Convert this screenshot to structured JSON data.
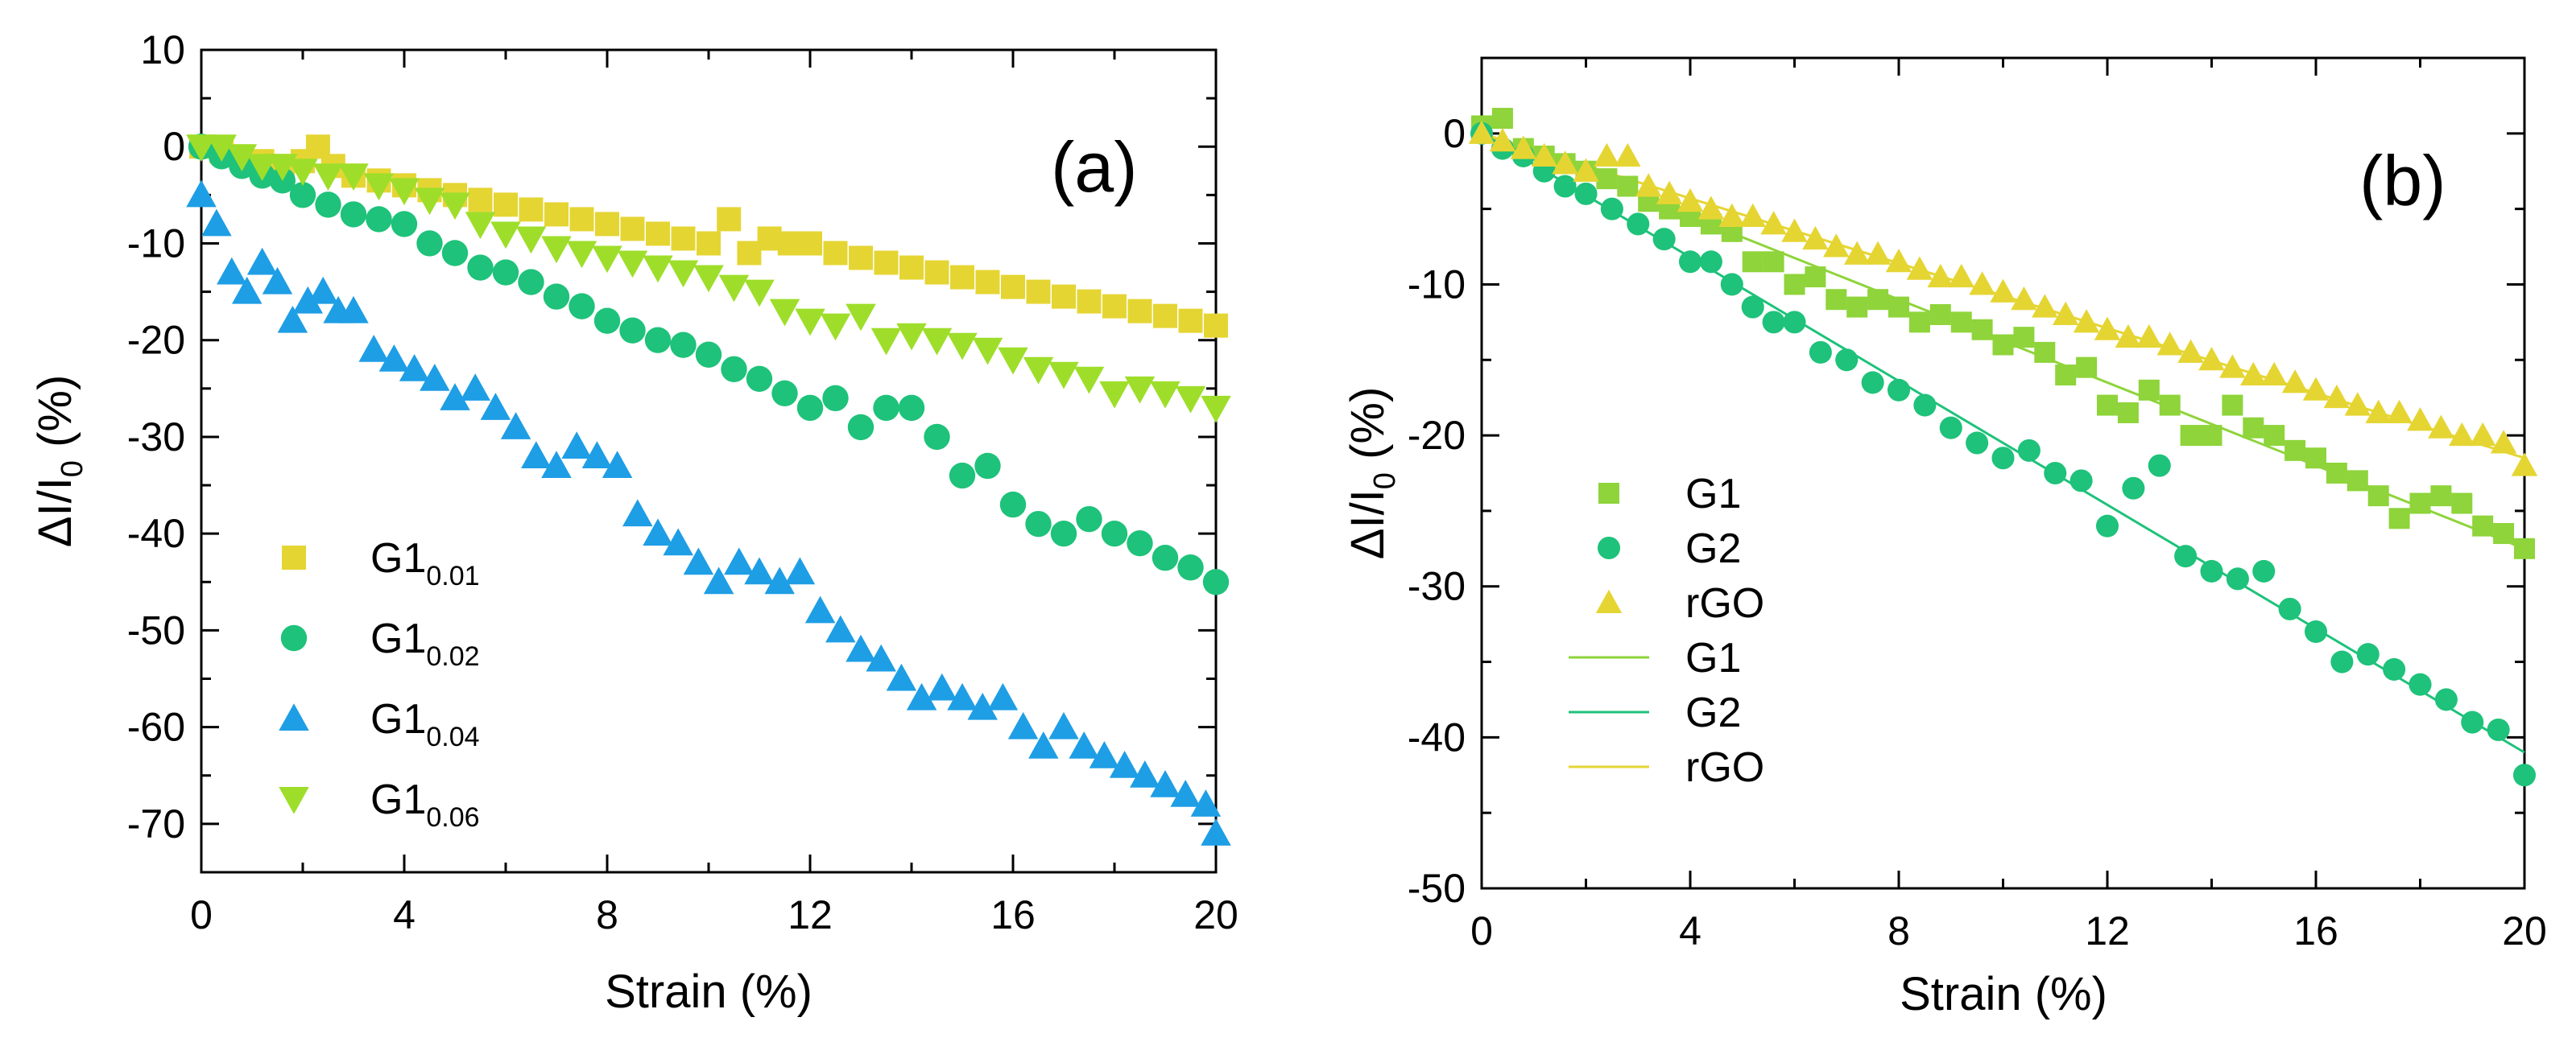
{
  "figure": {
    "panel_count": 2
  },
  "chart_data": [
    {
      "type": "scatter",
      "panel_label": "(a)",
      "xlabel": "Strain (%)",
      "ylabel": {
        "main": "ΔI/I",
        "sub": "0",
        "unit": " (%)"
      },
      "xlim": [
        0,
        20
      ],
      "ylim": [
        -75,
        10
      ],
      "xticks": [
        0,
        4,
        8,
        12,
        16,
        20
      ],
      "yticks": [
        10,
        0,
        -10,
        -20,
        -30,
        -40,
        -50,
        -60,
        -70
      ],
      "legend": {
        "position": "lower-left"
      },
      "series": [
        {
          "name": "G1",
          "subscript": "0.01",
          "marker": "square",
          "color": "#e5d533",
          "x": [
            0,
            0.4,
            0.8,
            1.2,
            1.6,
            2.0,
            2.3,
            2.6,
            3.0,
            3.5,
            4.0,
            4.5,
            5.0,
            5.5,
            6.0,
            6.5,
            7.0,
            7.5,
            8.0,
            8.5,
            9.0,
            9.5,
            10.0,
            10.4,
            10.8,
            11.2,
            11.6,
            12.0,
            12.5,
            13.0,
            13.5,
            14.0,
            14.5,
            15.0,
            15.5,
            16.0,
            16.5,
            17.0,
            17.5,
            18.0,
            18.5,
            19.0,
            19.5,
            20.0
          ],
          "y": [
            0,
            -0.5,
            -1,
            -1.5,
            -2,
            -1.5,
            0,
            -2,
            -3,
            -3.5,
            -4,
            -4.5,
            -5,
            -5.5,
            -6,
            -6.5,
            -7,
            -7.5,
            -8,
            -8.5,
            -9,
            -9.5,
            -10,
            -7.5,
            -11,
            -9.5,
            -10,
            -10,
            -11,
            -11.5,
            -12,
            -12.5,
            -13,
            -13.5,
            -14,
            -14.5,
            -15,
            -15.5,
            -16,
            -16.5,
            -17,
            -17.5,
            -18,
            -18.5
          ]
        },
        {
          "name": "G1",
          "subscript": "0.02",
          "marker": "circle",
          "color": "#1ec27a",
          "x": [
            0,
            0.4,
            0.8,
            1.2,
            1.6,
            2.0,
            2.5,
            3.0,
            3.5,
            4.0,
            4.5,
            5.0,
            5.5,
            6.0,
            6.5,
            7.0,
            7.5,
            8.0,
            8.5,
            9.0,
            9.5,
            10.0,
            10.5,
            11.0,
            11.5,
            12.0,
            12.5,
            13.0,
            13.5,
            14.0,
            14.5,
            15.0,
            15.5,
            16.0,
            16.5,
            17.0,
            17.5,
            18.0,
            18.5,
            19.0,
            19.5,
            20.0
          ],
          "y": [
            0,
            -1,
            -2,
            -3,
            -3.5,
            -5,
            -6,
            -7,
            -7.5,
            -8,
            -10,
            -11,
            -12.5,
            -13,
            -14,
            -15.5,
            -16.5,
            -18,
            -19,
            -20,
            -20.5,
            -21.5,
            -23,
            -24,
            -25.5,
            -27,
            -26,
            -29,
            -27,
            -27,
            -30,
            -34,
            -33,
            -37,
            -39,
            -40,
            -38.5,
            -40,
            -41,
            -42.5,
            -43.5,
            -45
          ]
        },
        {
          "name": "G1",
          "subscript": "0.04",
          "marker": "triangle-up",
          "color": "#1e9ee5",
          "x": [
            0,
            0.3,
            0.6,
            0.9,
            1.2,
            1.5,
            1.8,
            2.1,
            2.4,
            2.7,
            3.0,
            3.4,
            3.8,
            4.2,
            4.6,
            5.0,
            5.4,
            5.8,
            6.2,
            6.6,
            7.0,
            7.4,
            7.8,
            8.2,
            8.6,
            9.0,
            9.4,
            9.8,
            10.2,
            10.6,
            11.0,
            11.4,
            11.8,
            12.2,
            12.6,
            13.0,
            13.4,
            13.8,
            14.2,
            14.6,
            15.0,
            15.4,
            15.8,
            16.2,
            16.6,
            17.0,
            17.4,
            17.8,
            18.2,
            18.6,
            19.0,
            19.4,
            19.8,
            20.0
          ],
          "y": [
            -5,
            -8,
            -13,
            -15,
            -12,
            -14,
            -18,
            -16,
            -15,
            -17,
            -17,
            -21,
            -22,
            -23,
            -24,
            -26,
            -25,
            -27,
            -29,
            -32,
            -33,
            -31,
            -32,
            -33,
            -38,
            -40,
            -41,
            -43,
            -45,
            -43,
            -44,
            -45,
            -44,
            -48,
            -50,
            -52,
            -53,
            -55,
            -57,
            -56,
            -57,
            -58,
            -57,
            -60,
            -62,
            -60,
            -62,
            -63,
            -64,
            -65,
            -66,
            -67,
            -68,
            -71
          ]
        },
        {
          "name": "G1",
          "subscript": "0.06",
          "marker": "triangle-down",
          "color": "#9ede2a",
          "x": [
            0,
            0.4,
            0.8,
            1.2,
            1.6,
            2.0,
            2.5,
            3.0,
            3.5,
            4.0,
            4.5,
            5.0,
            5.5,
            6.0,
            6.5,
            7.0,
            7.5,
            8.0,
            8.5,
            9.0,
            9.5,
            10.0,
            10.5,
            11.0,
            11.5,
            12.0,
            12.5,
            13.0,
            13.5,
            14.0,
            14.5,
            15.0,
            15.5,
            16.0,
            16.5,
            17.0,
            17.5,
            18.0,
            18.5,
            19.0,
            19.5,
            20.0
          ],
          "y": [
            0,
            0,
            -1,
            -2,
            -2,
            -2.5,
            -3,
            -3,
            -4,
            -4.5,
            -5.5,
            -6,
            -8,
            -9,
            -9.5,
            -10.5,
            -11,
            -11.5,
            -12,
            -12.5,
            -13,
            -13.5,
            -14.5,
            -15,
            -17,
            -18,
            -18.5,
            -17.5,
            -20,
            -19.5,
            -20,
            -20.5,
            -21,
            -22,
            -23,
            -23.5,
            -24,
            -25.5,
            -25,
            -25.5,
            -26,
            -27
          ]
        }
      ]
    },
    {
      "type": "scatter",
      "panel_label": "(b)",
      "xlabel": "Strain (%)",
      "ylabel": {
        "main": "ΔI/I",
        "sub": "0",
        "unit": " (%)"
      },
      "xlim": [
        0,
        20
      ],
      "ylim": [
        -50,
        5
      ],
      "xticks": [
        0,
        4,
        8,
        12,
        16,
        20
      ],
      "yticks": [
        0,
        -10,
        -20,
        -30,
        -40,
        -50
      ],
      "legend": {
        "position": "lower-left"
      },
      "series": [
        {
          "name": "G1",
          "marker": "square",
          "color": "#8ed43a",
          "x": [
            0,
            0.4,
            0.8,
            1.2,
            1.6,
            2.0,
            2.4,
            2.8,
            3.2,
            3.6,
            4.0,
            4.4,
            4.8,
            5.2,
            5.6,
            6.0,
            6.4,
            6.8,
            7.2,
            7.6,
            8.0,
            8.4,
            8.8,
            9.2,
            9.6,
            10.0,
            10.4,
            10.8,
            11.2,
            11.6,
            12.0,
            12.4,
            12.8,
            13.2,
            13.6,
            14.0,
            14.4,
            14.8,
            15.2,
            15.6,
            16.0,
            16.4,
            16.8,
            17.2,
            17.6,
            18.0,
            18.4,
            18.8,
            19.2,
            19.6,
            20.0
          ],
          "y": [
            0.5,
            1,
            -1,
            -1.5,
            -2,
            -2.5,
            -3,
            -3.5,
            -4.5,
            -5,
            -5.5,
            -6,
            -6.5,
            -8.5,
            -8.5,
            -10,
            -9.5,
            -11,
            -11.5,
            -11,
            -11.5,
            -12.5,
            -12,
            -12.5,
            -13,
            -14,
            -13.5,
            -14.5,
            -16,
            -15.5,
            -18,
            -18.5,
            -17,
            -18,
            -20,
            -20,
            -18,
            -19.5,
            -20,
            -21,
            -21.5,
            -22.5,
            -23,
            -24,
            -25.5,
            -24.5,
            -24,
            -24.5,
            -26,
            -26.5,
            -27.5
          ]
        },
        {
          "name": "G2",
          "marker": "circle",
          "color": "#1ec27a",
          "x": [
            0,
            0.4,
            0.8,
            1.2,
            1.6,
            2.0,
            2.5,
            3.0,
            3.5,
            4.0,
            4.4,
            4.8,
            5.2,
            5.6,
            6.0,
            6.5,
            7.0,
            7.5,
            8.0,
            8.5,
            9.0,
            9.5,
            10.0,
            10.5,
            11.0,
            11.5,
            12.0,
            12.5,
            13.0,
            13.5,
            14.0,
            14.5,
            15.0,
            15.5,
            16.0,
            16.5,
            17.0,
            17.5,
            18.0,
            18.5,
            19.0,
            19.5,
            20.0
          ],
          "y": [
            0,
            -1,
            -1.5,
            -2.5,
            -3.5,
            -4,
            -5,
            -6,
            -7,
            -8.5,
            -8.5,
            -10,
            -11.5,
            -12.5,
            -12.5,
            -14.5,
            -15,
            -16.5,
            -17,
            -18,
            -19.5,
            -20.5,
            -21.5,
            -21,
            -22.5,
            -23,
            -26,
            -23.5,
            -22,
            -28,
            -29,
            -29.5,
            -29,
            -31.5,
            -33,
            -35,
            -34.5,
            -35.5,
            -36.5,
            -37.5,
            -39,
            -39.5,
            -42.5
          ]
        },
        {
          "name": "rGO",
          "marker": "triangle-up",
          "color": "#e5d533",
          "x": [
            0,
            0.4,
            0.8,
            1.2,
            1.6,
            2.0,
            2.4,
            2.8,
            3.2,
            3.6,
            4.0,
            4.4,
            4.8,
            5.2,
            5.6,
            6.0,
            6.4,
            6.8,
            7.2,
            7.6,
            8.0,
            8.4,
            8.8,
            9.2,
            9.6,
            10.0,
            10.4,
            10.8,
            11.2,
            11.6,
            12.0,
            12.4,
            12.8,
            13.2,
            13.6,
            14.0,
            14.4,
            14.8,
            15.2,
            15.6,
            16.0,
            16.4,
            16.8,
            17.2,
            17.6,
            18.0,
            18.4,
            18.8,
            19.2,
            19.6,
            20.0
          ],
          "y": [
            0,
            -0.5,
            -1,
            -1.5,
            -2,
            -2.5,
            -1.5,
            -1.5,
            -3.5,
            -4,
            -4.5,
            -5,
            -5.5,
            -5.5,
            -6,
            -6.5,
            -7,
            -7.5,
            -8,
            -8,
            -8.5,
            -9,
            -9.5,
            -9.5,
            -10,
            -10.5,
            -11,
            -11.5,
            -12,
            -12.5,
            -13,
            -13.5,
            -13.5,
            -14,
            -14.5,
            -15,
            -15.5,
            -16,
            -16,
            -16.5,
            -17,
            -17.5,
            -18,
            -18.5,
            -18.5,
            -19,
            -19.5,
            -20,
            -20,
            -20.5,
            -22
          ]
        }
      ],
      "fit_lines": [
        {
          "name": "G1",
          "color": "#8ed43a",
          "x": [
            0,
            20
          ],
          "y": [
            0,
            -27.5
          ]
        },
        {
          "name": "G2",
          "color": "#1ec27a",
          "x": [
            0,
            20
          ],
          "y": [
            0,
            -41
          ]
        },
        {
          "name": "rGO",
          "color": "#e5d533",
          "x": [
            0,
            20
          ],
          "y": [
            0,
            -21.5
          ]
        }
      ]
    }
  ]
}
